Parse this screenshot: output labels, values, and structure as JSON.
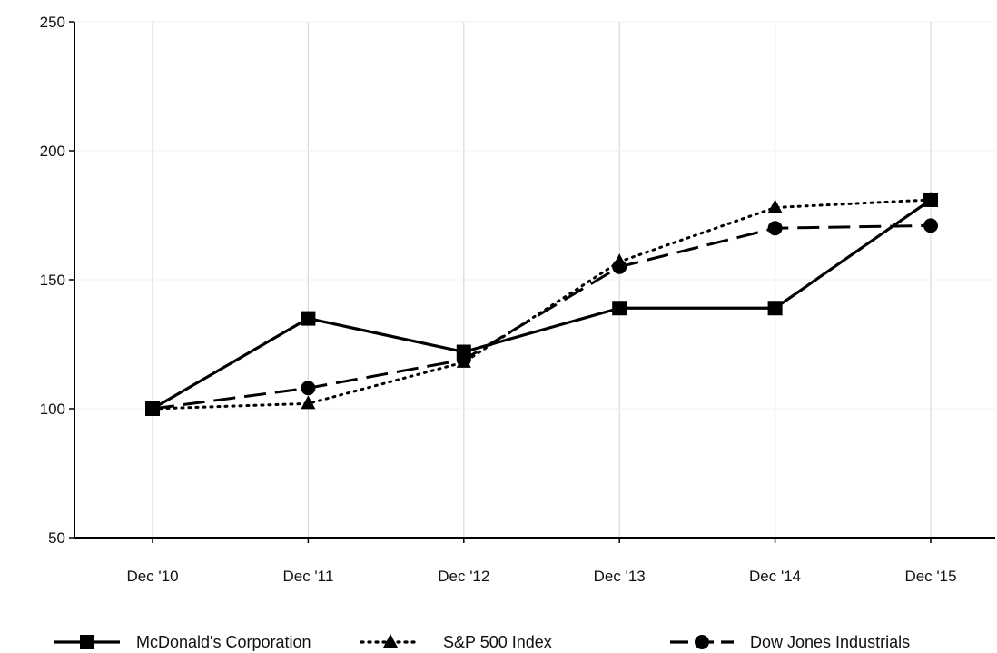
{
  "chart_data": {
    "type": "line",
    "title": "",
    "xlabel": "",
    "ylabel": "",
    "categories": [
      "Dec '10",
      "Dec '11",
      "Dec '12",
      "Dec '13",
      "Dec '14",
      "Dec '15"
    ],
    "ylim": [
      50,
      250
    ],
    "yticks": [
      50,
      100,
      150,
      200,
      250
    ],
    "grid": "vertical",
    "legend": "bottom",
    "series": [
      {
        "name": "McDonald's Corporation",
        "values": [
          100,
          135,
          122,
          139,
          139,
          181
        ],
        "marker": "square",
        "dash": "solid",
        "color": "#000000"
      },
      {
        "name": "S&P 500 Index",
        "values": [
          100,
          102,
          118,
          157,
          178,
          181
        ],
        "marker": "triangle",
        "dash": "dotted",
        "color": "#000000"
      },
      {
        "name": "Dow Jones Industrials",
        "values": [
          100,
          108,
          119,
          155,
          170,
          171
        ],
        "marker": "circle",
        "dash": "dashed",
        "color": "#000000"
      }
    ]
  }
}
